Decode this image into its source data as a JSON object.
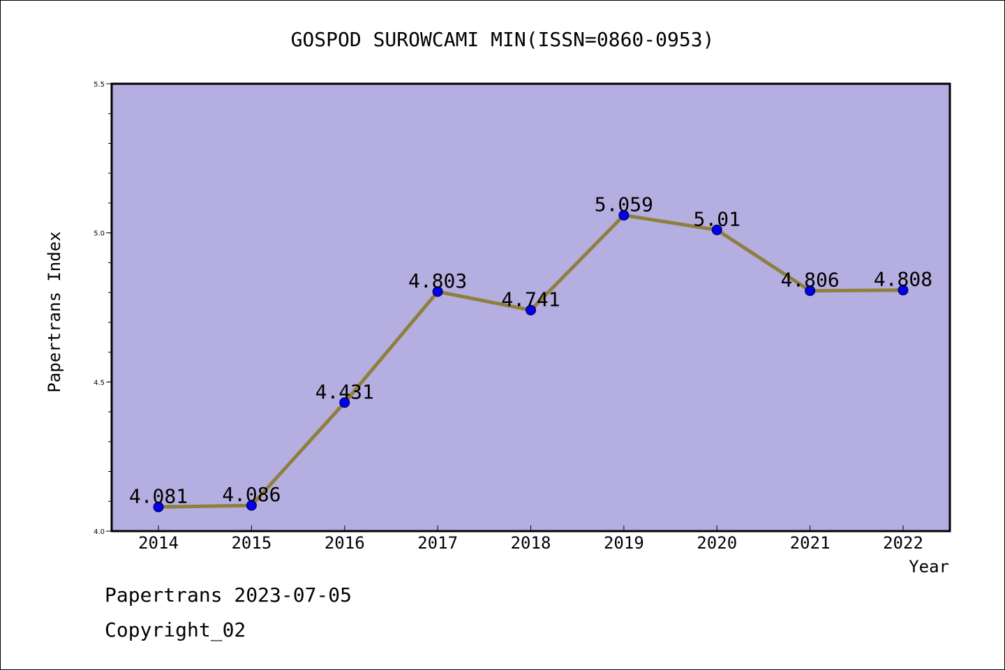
{
  "chart_data": {
    "type": "line",
    "title": "GOSPOD SUROWCAMI MIN(ISSN=0860-0953)",
    "xlabel": "Year",
    "ylabel": "Papertrans Index",
    "categories": [
      "2014",
      "2015",
      "2016",
      "2017",
      "2018",
      "2019",
      "2020",
      "2021",
      "2022"
    ],
    "series": [
      {
        "values": [
          4.081,
          4.086,
          4.431,
          4.803,
          4.741,
          5.059,
          5.01,
          4.806,
          4.808
        ],
        "labels": [
          "4.081",
          "4.086",
          "4.431",
          "4.803",
          "4.741",
          "5.059",
          "5.01",
          "4.806",
          "4.808"
        ]
      }
    ],
    "ylim": [
      4.0,
      5.5
    ],
    "yticks": [
      "4.0",
      "4.5",
      "5.0",
      "5.5"
    ],
    "grid": false,
    "colors": {
      "plot_background": "#b5aee1",
      "line": "#8f7f3c",
      "marker": "#0000ee"
    }
  },
  "footer": {
    "date_line": "Papertrans 2023-07-05",
    "copyright": "Copyright_02"
  }
}
